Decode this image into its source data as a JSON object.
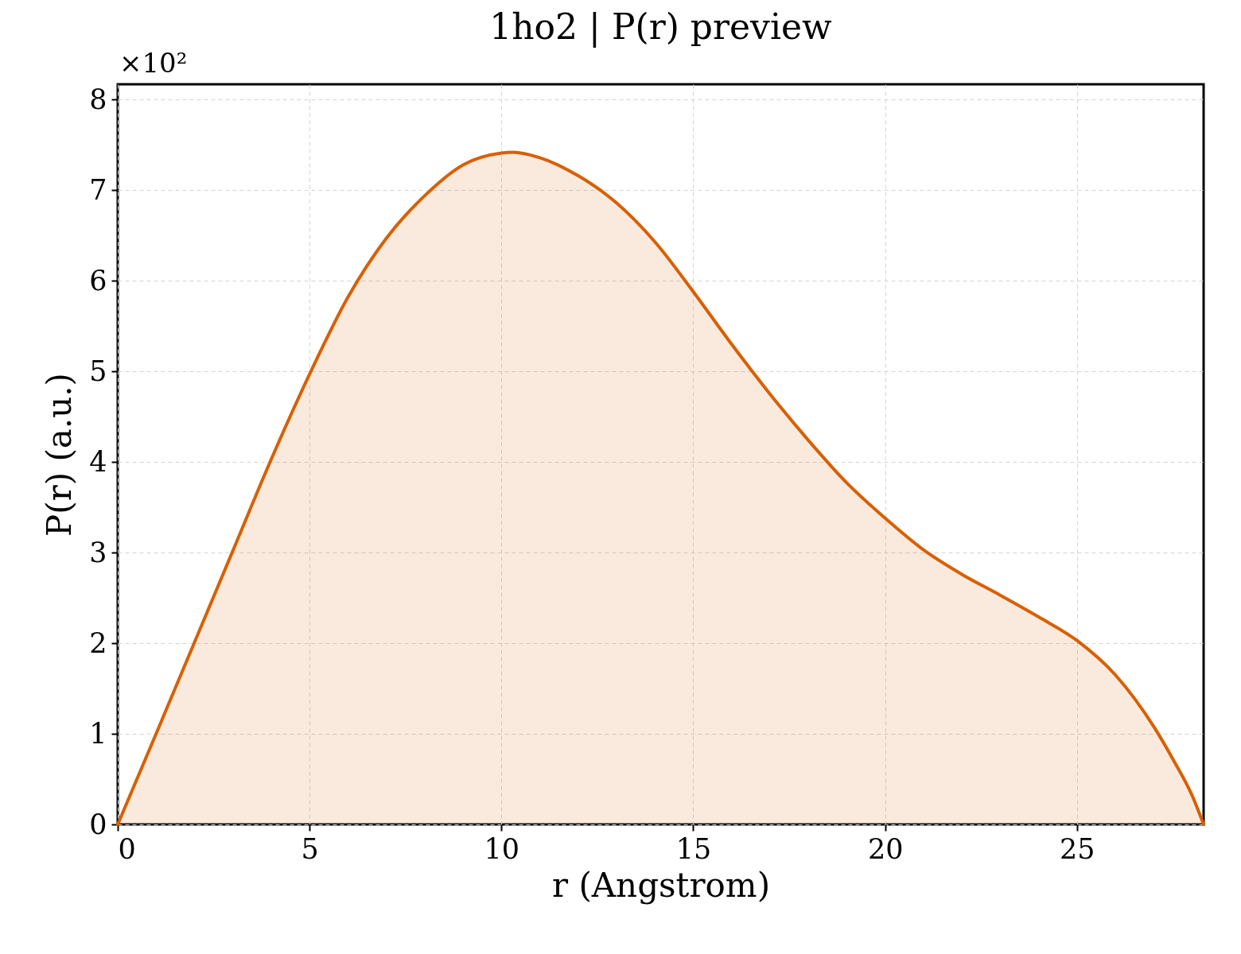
{
  "chart_data": {
    "type": "area",
    "title": "1ho2 | P(r) preview",
    "xlabel": "r (Angstrom)",
    "ylabel": "P(r) (a.u.)",
    "annotations": [
      "×10²"
    ],
    "x": [
      0,
      1,
      2,
      3,
      4,
      5,
      6,
      7,
      8,
      9,
      10,
      10.3,
      11,
      12,
      13,
      14,
      15,
      16,
      17,
      18,
      19,
      20,
      21,
      22,
      23,
      24,
      25,
      26,
      27,
      27.5,
      28,
      28.3
    ],
    "series": [
      {
        "color": "#d95f02",
        "values": [
          0,
          1.0,
          2.01,
          3.02,
          4.03,
          4.97,
          5.82,
          6.47,
          6.94,
          7.28,
          7.41,
          7.42,
          7.36,
          7.16,
          6.86,
          6.43,
          5.88,
          5.3,
          4.75,
          4.24,
          3.77,
          3.38,
          3.03,
          2.76,
          2.53,
          2.29,
          2.03,
          1.65,
          1.08,
          0.72,
          0.32,
          0
        ]
      }
    ],
    "xlim": [
      0,
      28.3
    ],
    "ylim": [
      0,
      8.17
    ],
    "xticks": [
      0,
      5,
      10,
      15,
      20,
      25
    ],
    "yticks": [
      0,
      1,
      2,
      3,
      4,
      5,
      6,
      7,
      8
    ],
    "grid": true
  }
}
